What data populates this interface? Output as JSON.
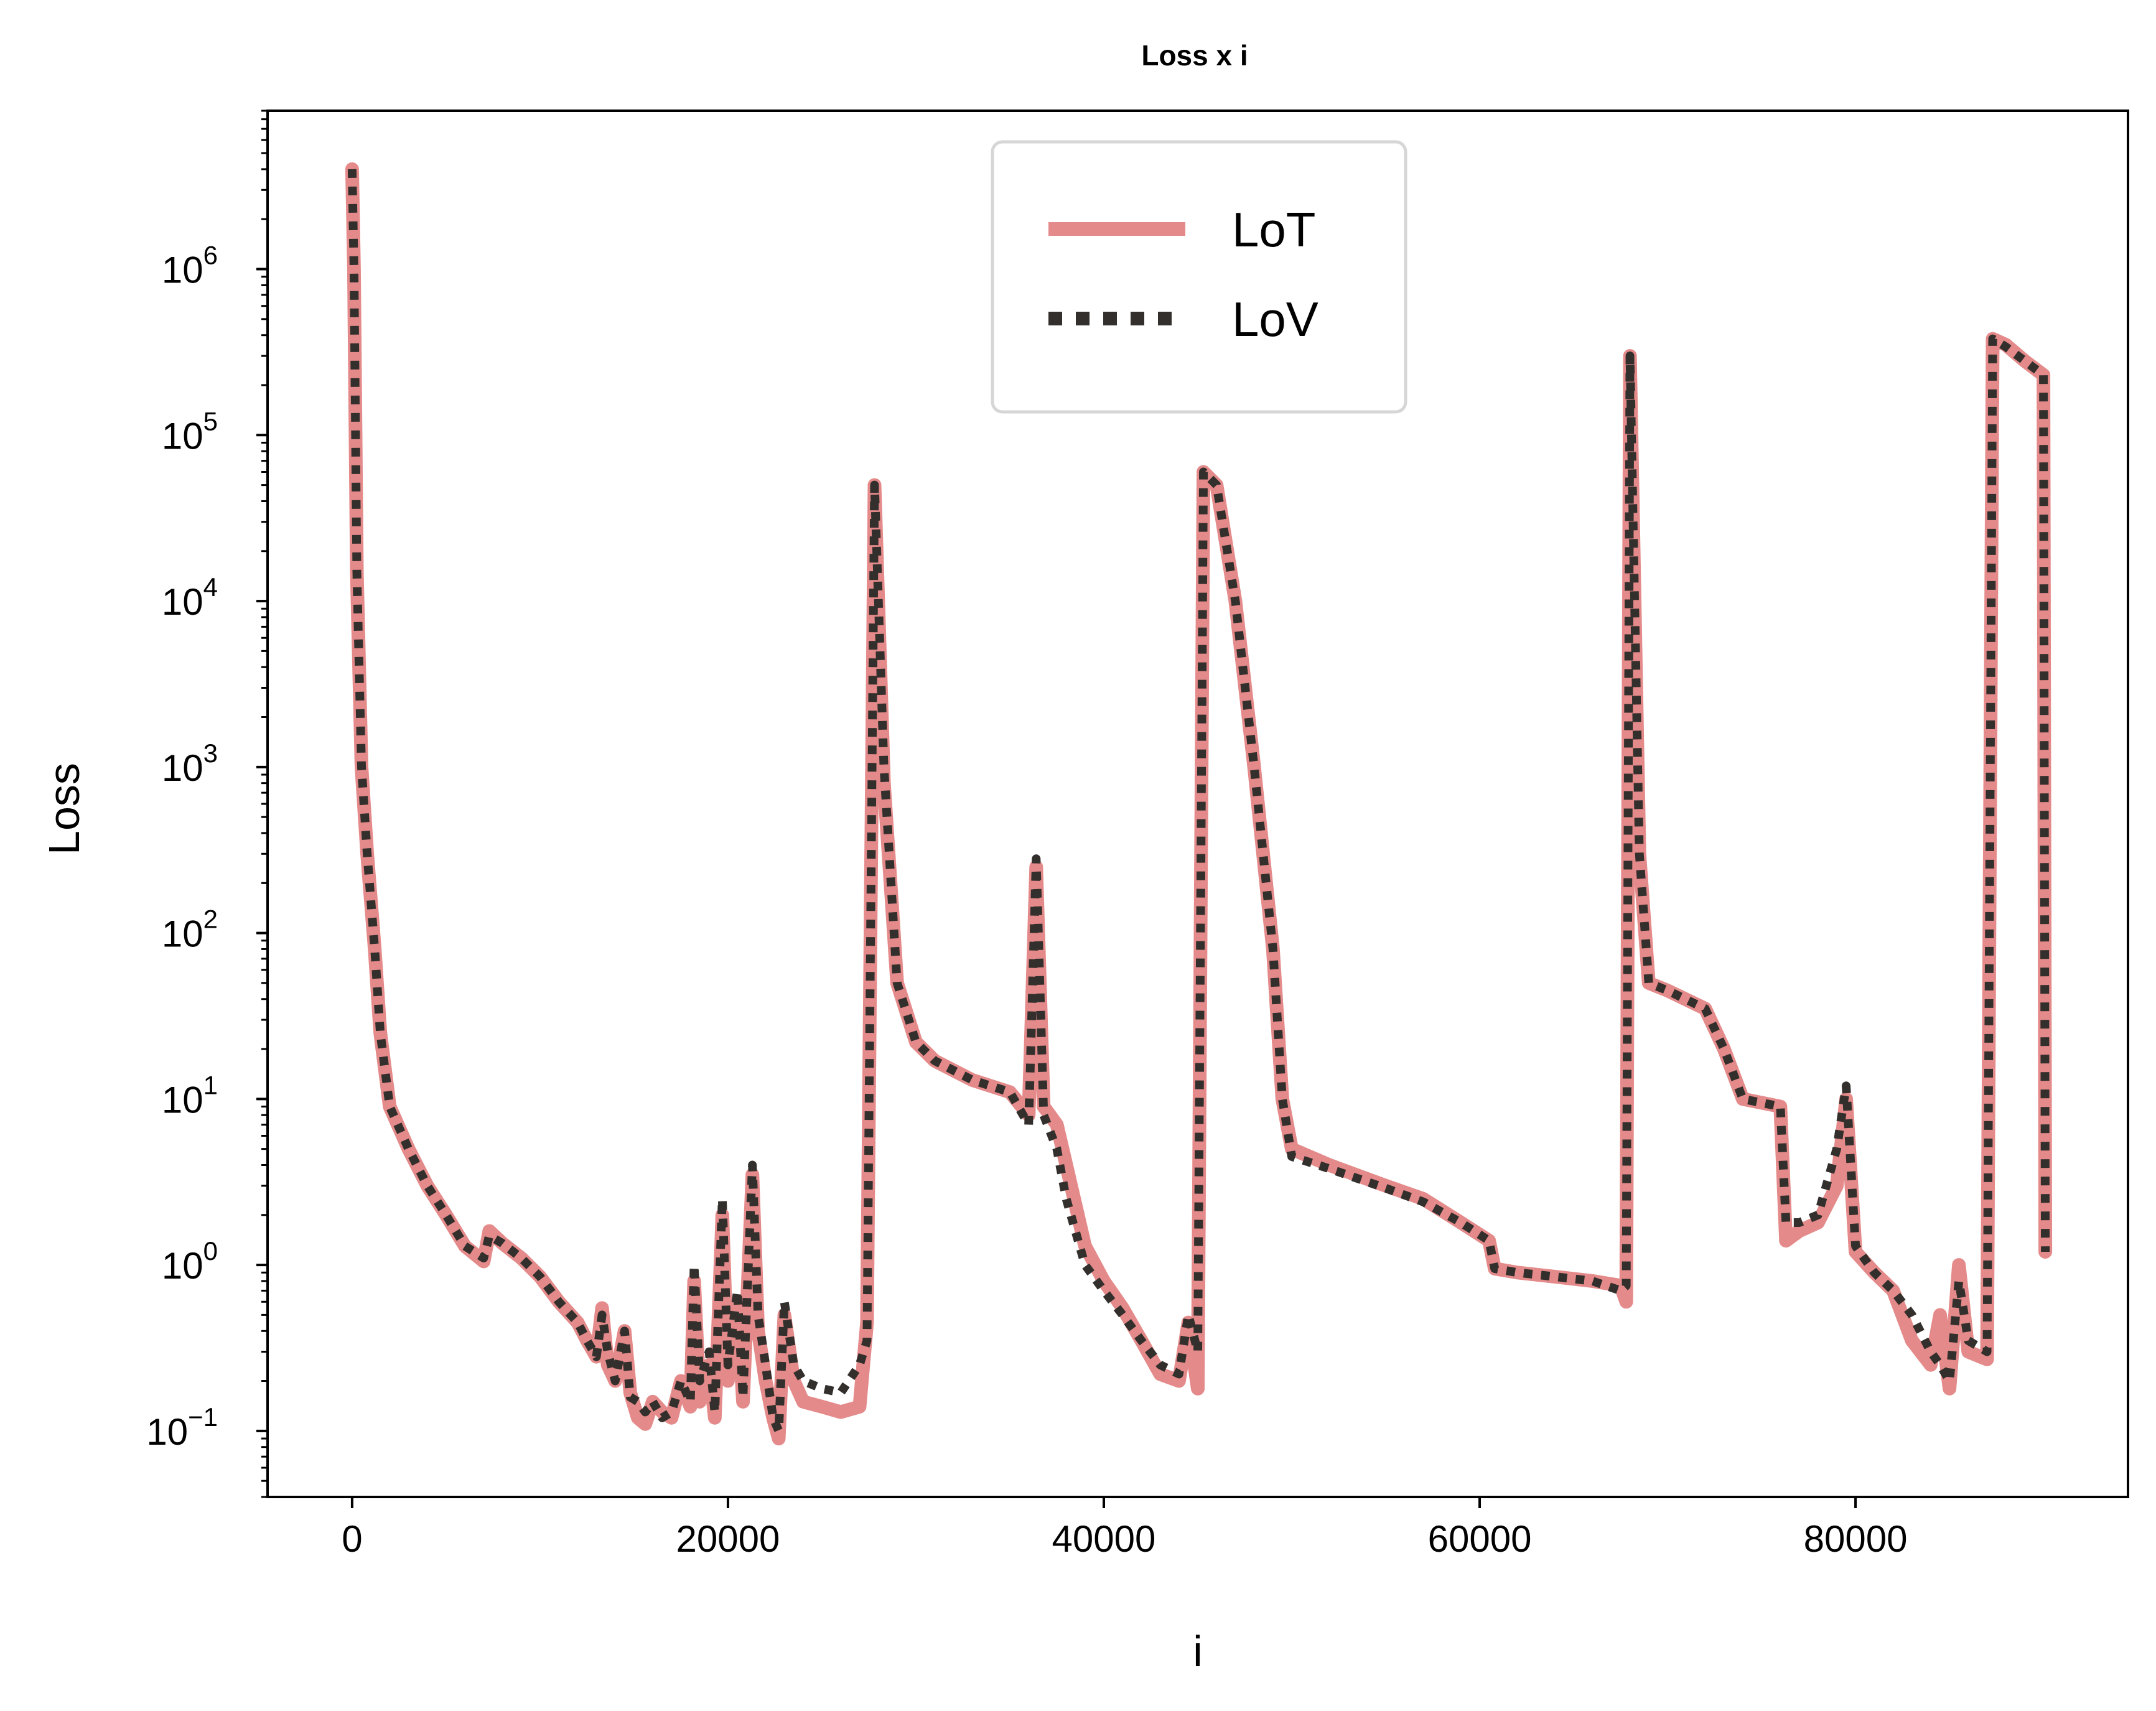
{
  "chart_data": {
    "type": "line",
    "title": "Loss x i",
    "xlabel": "i",
    "ylabel": "Loss",
    "xlim": [
      -4500,
      94500
    ],
    "ylim": [
      0.04,
      9000000
    ],
    "yscale": "log",
    "grid": false,
    "legend_position": "upper-center",
    "x_ticks": [
      {
        "value": 0,
        "label": "0"
      },
      {
        "value": 20000,
        "label": "20000"
      },
      {
        "value": 40000,
        "label": "40000"
      },
      {
        "value": 60000,
        "label": "60000"
      },
      {
        "value": 80000,
        "label": "80000"
      }
    ],
    "y_ticks": [
      {
        "value": 0.1,
        "base": "10",
        "exp": "−1"
      },
      {
        "value": 1,
        "base": "10",
        "exp": "0"
      },
      {
        "value": 10,
        "base": "10",
        "exp": "1"
      },
      {
        "value": 100,
        "base": "10",
        "exp": "2"
      },
      {
        "value": 1000,
        "base": "10",
        "exp": "3"
      },
      {
        "value": 10000,
        "base": "10",
        "exp": "4"
      },
      {
        "value": 100000,
        "base": "10",
        "exp": "5"
      },
      {
        "value": 1000000,
        "base": "10",
        "exp": "6"
      }
    ],
    "series": [
      {
        "name": "LoT",
        "color": "#e58a8a",
        "style": "solid",
        "points": [
          [
            0,
            4000000
          ],
          [
            100,
            1000000
          ],
          [
            250,
            15000
          ],
          [
            500,
            1000
          ],
          [
            800,
            300
          ],
          [
            1200,
            80
          ],
          [
            1500,
            25
          ],
          [
            2000,
            9
          ],
          [
            3000,
            5
          ],
          [
            4000,
            3
          ],
          [
            5000,
            2
          ],
          [
            6000,
            1.3
          ],
          [
            7000,
            1.05
          ],
          [
            7300,
            1.6
          ],
          [
            8000,
            1.35
          ],
          [
            9000,
            1.1
          ],
          [
            10000,
            0.85
          ],
          [
            11000,
            0.6
          ],
          [
            12000,
            0.45
          ],
          [
            12500,
            0.35
          ],
          [
            13000,
            0.28
          ],
          [
            13300,
            0.55
          ],
          [
            13600,
            0.25
          ],
          [
            14000,
            0.2
          ],
          [
            14500,
            0.4
          ],
          [
            14800,
            0.17
          ],
          [
            15200,
            0.12
          ],
          [
            15600,
            0.11
          ],
          [
            16000,
            0.15
          ],
          [
            16500,
            0.13
          ],
          [
            17000,
            0.12
          ],
          [
            17500,
            0.2
          ],
          [
            18000,
            0.14
          ],
          [
            18200,
            0.8
          ],
          [
            18500,
            0.15
          ],
          [
            19000,
            0.25
          ],
          [
            19300,
            0.12
          ],
          [
            19700,
            2
          ],
          [
            20000,
            0.2
          ],
          [
            20500,
            0.6
          ],
          [
            20800,
            0.15
          ],
          [
            21300,
            3.5
          ],
          [
            21600,
            0.4
          ],
          [
            22000,
            0.2
          ],
          [
            22400,
            0.12
          ],
          [
            22700,
            0.09
          ],
          [
            23000,
            0.5
          ],
          [
            23500,
            0.2
          ],
          [
            24000,
            0.15
          ],
          [
            25000,
            0.14
          ],
          [
            26000,
            0.13
          ],
          [
            27000,
            0.14
          ],
          [
            27400,
            0.45
          ],
          [
            27800,
            50000
          ],
          [
            28300,
            800
          ],
          [
            29000,
            50
          ],
          [
            30000,
            22
          ],
          [
            31000,
            17
          ],
          [
            33000,
            13
          ],
          [
            35000,
            11
          ],
          [
            36000,
            8
          ],
          [
            36400,
            250
          ],
          [
            36800,
            9
          ],
          [
            37500,
            7
          ],
          [
            38000,
            4
          ],
          [
            39000,
            1.3
          ],
          [
            40000,
            0.8
          ],
          [
            41000,
            0.55
          ],
          [
            42000,
            0.35
          ],
          [
            43000,
            0.22
          ],
          [
            44000,
            0.2
          ],
          [
            44500,
            0.45
          ],
          [
            45000,
            0.18
          ],
          [
            45300,
            60000
          ],
          [
            46000,
            50000
          ],
          [
            47000,
            10000
          ],
          [
            48000,
            1000
          ],
          [
            49000,
            80
          ],
          [
            49500,
            10
          ],
          [
            50000,
            5
          ],
          [
            52000,
            4
          ],
          [
            55000,
            3
          ],
          [
            57000,
            2.5
          ],
          [
            59000,
            1.8
          ],
          [
            60500,
            1.4
          ],
          [
            60800,
            0.95
          ],
          [
            62000,
            0.9
          ],
          [
            64000,
            0.85
          ],
          [
            66000,
            0.8
          ],
          [
            67500,
            0.75
          ],
          [
            67800,
            0.6
          ],
          [
            68000,
            300000
          ],
          [
            68500,
            300
          ],
          [
            69000,
            50
          ],
          [
            70000,
            45
          ],
          [
            72000,
            35
          ],
          [
            73000,
            20
          ],
          [
            74000,
            10
          ],
          [
            76000,
            9
          ],
          [
            76300,
            1.4
          ],
          [
            77000,
            1.6
          ],
          [
            78000,
            1.8
          ],
          [
            79000,
            3
          ],
          [
            79500,
            10
          ],
          [
            80000,
            1.2
          ],
          [
            81000,
            0.9
          ],
          [
            82000,
            0.7
          ],
          [
            83000,
            0.35
          ],
          [
            84000,
            0.25
          ],
          [
            84500,
            0.5
          ],
          [
            85000,
            0.18
          ],
          [
            85500,
            1
          ],
          [
            86000,
            0.3
          ],
          [
            87000,
            0.27
          ],
          [
            87300,
            380000
          ],
          [
            88000,
            350000
          ],
          [
            89000,
            280000
          ],
          [
            90000,
            230000
          ],
          [
            90100,
            1.2
          ]
        ]
      },
      {
        "name": "LoV",
        "color": "#332f2c",
        "style": "dotted",
        "points": [
          [
            0,
            4000000
          ],
          [
            100,
            1000000
          ],
          [
            250,
            15000
          ],
          [
            500,
            1000
          ],
          [
            800,
            300
          ],
          [
            1200,
            80
          ],
          [
            1500,
            25
          ],
          [
            2000,
            9
          ],
          [
            3000,
            5
          ],
          [
            4000,
            3
          ],
          [
            5000,
            2
          ],
          [
            6000,
            1.3
          ],
          [
            7000,
            1.1
          ],
          [
            7300,
            1.5
          ],
          [
            8000,
            1.35
          ],
          [
            9000,
            1.1
          ],
          [
            10000,
            0.85
          ],
          [
            11000,
            0.6
          ],
          [
            12000,
            0.45
          ],
          [
            12500,
            0.35
          ],
          [
            13000,
            0.28
          ],
          [
            13300,
            0.5
          ],
          [
            13600,
            0.3
          ],
          [
            14000,
            0.2
          ],
          [
            14500,
            0.4
          ],
          [
            14800,
            0.16
          ],
          [
            15200,
            0.15
          ],
          [
            15600,
            0.13
          ],
          [
            16000,
            0.15
          ],
          [
            16500,
            0.12
          ],
          [
            17000,
            0.13
          ],
          [
            17500,
            0.2
          ],
          [
            18000,
            0.15
          ],
          [
            18200,
            1
          ],
          [
            18500,
            0.2
          ],
          [
            19000,
            0.3
          ],
          [
            19300,
            0.13
          ],
          [
            19700,
            2.5
          ],
          [
            20000,
            0.25
          ],
          [
            20500,
            0.7
          ],
          [
            20800,
            0.16
          ],
          [
            21300,
            4
          ],
          [
            21600,
            0.5
          ],
          [
            22000,
            0.25
          ],
          [
            22400,
            0.12
          ],
          [
            22700,
            0.1
          ],
          [
            23000,
            0.6
          ],
          [
            23500,
            0.25
          ],
          [
            24000,
            0.2
          ],
          [
            25000,
            0.18
          ],
          [
            26000,
            0.17
          ],
          [
            27000,
            0.25
          ],
          [
            27400,
            0.35
          ],
          [
            27800,
            50000
          ],
          [
            28300,
            1000
          ],
          [
            29000,
            50
          ],
          [
            30000,
            22
          ],
          [
            31000,
            17
          ],
          [
            33000,
            13
          ],
          [
            35000,
            11
          ],
          [
            36000,
            7
          ],
          [
            36400,
            280
          ],
          [
            36800,
            8
          ],
          [
            37500,
            5
          ],
          [
            38000,
            2.5
          ],
          [
            39000,
            1
          ],
          [
            40000,
            0.7
          ],
          [
            41000,
            0.5
          ],
          [
            42000,
            0.35
          ],
          [
            43000,
            0.25
          ],
          [
            44000,
            0.22
          ],
          [
            44500,
            0.5
          ],
          [
            45000,
            0.3
          ],
          [
            45300,
            60000
          ],
          [
            46000,
            50000
          ],
          [
            47000,
            10000
          ],
          [
            48000,
            1000
          ],
          [
            49000,
            80
          ],
          [
            49500,
            10
          ],
          [
            50000,
            4.5
          ],
          [
            52000,
            3.8
          ],
          [
            55000,
            2.9
          ],
          [
            57000,
            2.4
          ],
          [
            59000,
            1.8
          ],
          [
            60500,
            1.4
          ],
          [
            60800,
            0.95
          ],
          [
            62000,
            0.9
          ],
          [
            64000,
            0.85
          ],
          [
            66000,
            0.8
          ],
          [
            67500,
            0.7
          ],
          [
            67800,
            0.75
          ],
          [
            68000,
            300000
          ],
          [
            68500,
            300
          ],
          [
            69000,
            50
          ],
          [
            70000,
            45
          ],
          [
            72000,
            35
          ],
          [
            73000,
            20
          ],
          [
            74000,
            10
          ],
          [
            76000,
            9
          ],
          [
            76300,
            1.8
          ],
          [
            77000,
            1.8
          ],
          [
            78000,
            2
          ],
          [
            79000,
            5
          ],
          [
            79500,
            12
          ],
          [
            80000,
            1.3
          ],
          [
            81000,
            0.9
          ],
          [
            82000,
            0.7
          ],
          [
            83000,
            0.5
          ],
          [
            84000,
            0.3
          ],
          [
            84500,
            0.25
          ],
          [
            85000,
            0.2
          ],
          [
            85500,
            0.8
          ],
          [
            86000,
            0.35
          ],
          [
            87000,
            0.3
          ],
          [
            87300,
            380000
          ],
          [
            88000,
            340000
          ],
          [
            89000,
            280000
          ],
          [
            90000,
            230000
          ],
          [
            90100,
            1.2
          ]
        ]
      }
    ]
  }
}
